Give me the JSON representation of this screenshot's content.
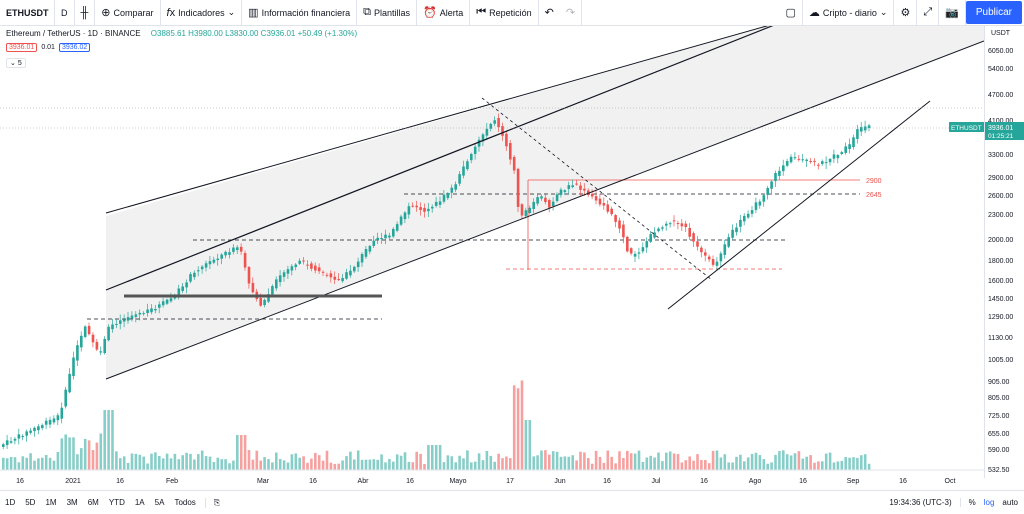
{
  "toolbar": {
    "symbol": "ETHUSDT",
    "interval": "D",
    "compare": "Comparar",
    "indicators": "Indicadores",
    "financial": "Información financiera",
    "templates": "Plantillas",
    "alert": "Alerta",
    "replay": "Repetición",
    "layout": "Cripto - diario",
    "publish": "Publicar"
  },
  "legend": {
    "title": "Ethereum / TetherUS · 1D · BINANCE",
    "ohlc": "O3885.61 H3980.00 L3830.00 C3936.01 +50.49 (+1.30%)",
    "bid": "3936.01",
    "spread": "0.01",
    "ask": "3936.02",
    "collapse": "5"
  },
  "price_axis": {
    "currency": "USDT",
    "ticks": [
      "6050.00",
      "5400.00",
      "4700.00",
      "4100.00",
      "3300.00",
      "2900.00",
      "2600.00",
      "2300.00",
      "2000.00",
      "1800.00",
      "1600.00",
      "1450.00",
      "1290.00",
      "1130.00",
      "1005.00",
      "905.00",
      "805.00",
      "725.00",
      "655.00",
      "590.00",
      "532.50"
    ],
    "last_symbol": "ETHUSDT",
    "last_price": "3936.01",
    "countdown": "01:25:21"
  },
  "levels": {
    "l1": "2900",
    "l2": "2645"
  },
  "time_axis": [
    "16",
    "2021",
    "16",
    "Feb",
    "Mar",
    "16",
    "Abr",
    "16",
    "Mayo",
    "17",
    "Jun",
    "16",
    "Jul",
    "16",
    "Ago",
    "16",
    "Sep",
    "16",
    "Oct"
  ],
  "bottom": {
    "timeframes": [
      "1D",
      "5D",
      "1M",
      "3M",
      "6M",
      "YTD",
      "1A",
      "5A",
      "Todos"
    ],
    "clock": "19:34:36 (UTC-3)",
    "percent": "%",
    "log": "log",
    "auto": "auto"
  },
  "colors": {
    "up": "#26a69a",
    "down": "#ef5350",
    "accent": "#2962ff",
    "level": "#ef5350"
  }
}
